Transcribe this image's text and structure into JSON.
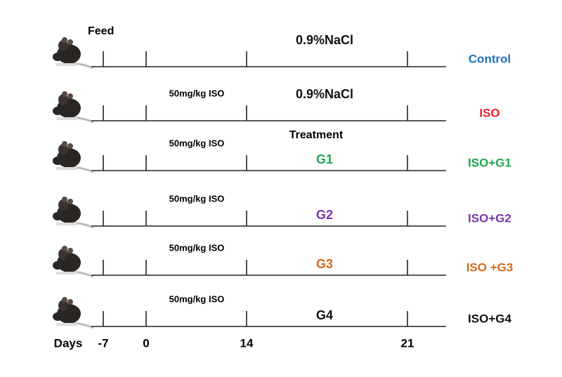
{
  "header": {
    "feed": "Feed",
    "treatment": "Treatment"
  },
  "rows": [
    {
      "group": "Control",
      "color": "#1f6fc0",
      "middle": "0.9%NaCl",
      "middle_color": "#111111"
    },
    {
      "group": "ISO",
      "color": "#e8202a",
      "dose": "50mg/kg ISO",
      "middle": "0.9%NaCl",
      "middle_color": "#111111"
    },
    {
      "group": "ISO+G1",
      "color": "#1fa652",
      "dose": "50mg/kg ISO",
      "middle": "G1",
      "middle_color": "#1fa652"
    },
    {
      "group": "ISO+G2",
      "color": "#7a35a8",
      "dose": "50mg/kg ISO",
      "middle": "G2",
      "middle_color": "#7a35a8"
    },
    {
      "group": "ISO +G3",
      "color": "#d26a1e",
      "dose": "50mg/kg ISO",
      "middle": "G3",
      "middle_color": "#d26a1e"
    },
    {
      "group": "ISO+G4",
      "color": "#111111",
      "dose": "50mg/kg ISO",
      "middle": "G4",
      "middle_color": "#111111"
    }
  ],
  "axis": {
    "label": "Days",
    "ticks": [
      "-7",
      "0",
      "14",
      "21"
    ]
  }
}
